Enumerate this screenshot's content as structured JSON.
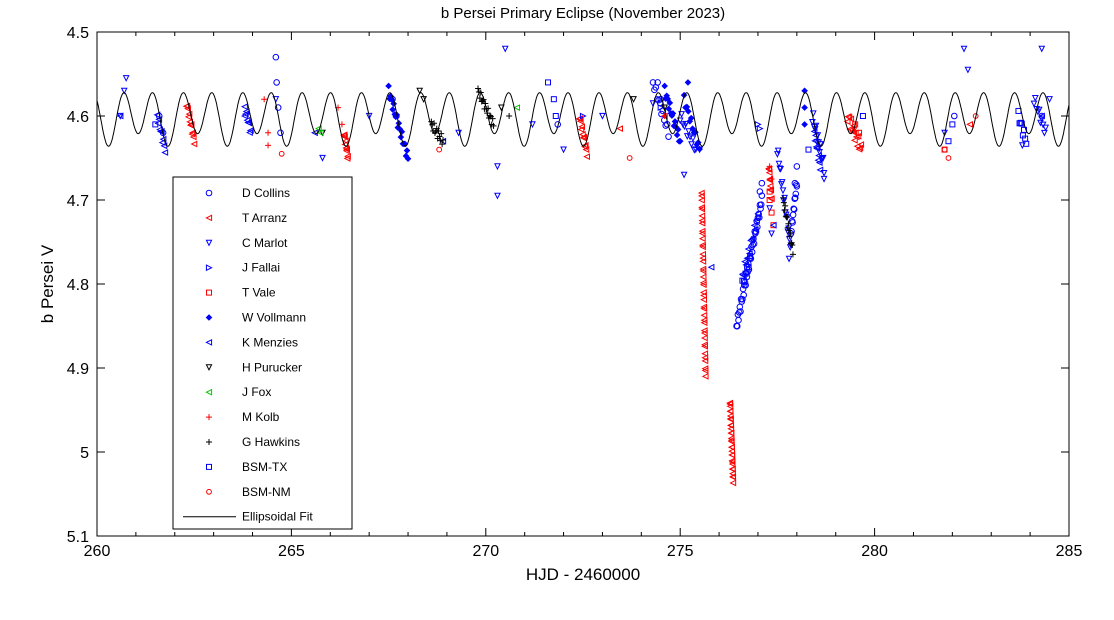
{
  "chart_data": {
    "type": "scatter",
    "title": "b Persei Primary Eclipse (November 2023)",
    "xlabel": "HJD - 2460000",
    "ylabel": "b Persei V",
    "xlim": [
      260,
      285
    ],
    "ylim": [
      4.5,
      5.1
    ],
    "y_inverted": true,
    "xticks": [
      260,
      265,
      270,
      275,
      280,
      285
    ],
    "xtick_labels": [
      "260",
      "265",
      "270",
      "275",
      "280",
      "285"
    ],
    "yticks": [
      4.5,
      4.6,
      4.7,
      4.8,
      4.9,
      5.0,
      5.1
    ],
    "ytick_labels": [
      "4.5",
      "4.6",
      "4.7",
      "4.8",
      "4.9",
      "5",
      "5.1"
    ],
    "legend_position": "bottom-left",
    "grid": false,
    "fit": {
      "name": "Ellipsoidal Fit",
      "color": "#000000",
      "mean": 4.6005,
      "amp_half_period": 0.028,
      "amp_period": 0.0075,
      "period_days": 1.527,
      "epoch": 274.04
    },
    "series": [
      {
        "name": "D Collins",
        "marker": "circle",
        "color": "#0000ff",
        "points": [
          [
            261.6,
            4.6
          ],
          [
            261.7,
            4.62
          ],
          [
            264.6,
            4.53
          ],
          [
            264.62,
            4.56
          ],
          [
            264.66,
            4.59
          ],
          [
            264.72,
            4.62
          ],
          [
            267.6,
            4.58
          ],
          [
            267.7,
            4.6
          ],
          [
            271.85,
            4.61
          ],
          [
            274.42,
            4.56
          ],
          [
            274.5,
            4.58
          ],
          [
            276.46,
            4.85
          ],
          [
            277.05,
            4.69
          ],
          [
            277.1,
            4.68
          ],
          [
            277.95,
            4.68
          ],
          [
            278.0,
            4.66
          ],
          [
            282.05,
            4.6
          ],
          [
            284.3,
            4.6
          ]
        ],
        "runs": [
          [
            276.45,
            277.1,
            4.85,
            4.7,
            40,
            0.006
          ],
          [
            277.85,
            278.0,
            4.74,
            4.68,
            12,
            0.004
          ],
          [
            274.3,
            274.7,
            4.56,
            4.62,
            12,
            0.005
          ]
        ]
      },
      {
        "name": "T Arranz",
        "marker": "tri-left",
        "color": "#ff0000",
        "points": [
          [
            273.45,
            4.615
          ],
          [
            274.6,
            4.6
          ],
          [
            282.45,
            4.61
          ]
        ],
        "runs": [
          [
            262.3,
            262.5,
            4.585,
            4.63,
            12,
            0.004
          ],
          [
            266.35,
            266.45,
            4.62,
            4.65,
            10,
            0.004
          ],
          [
            272.4,
            272.6,
            4.6,
            4.645,
            12,
            0.004
          ],
          [
            275.55,
            275.65,
            4.69,
            4.91,
            40,
            0.002
          ],
          [
            276.28,
            276.36,
            4.94,
            5.035,
            30,
            0.002
          ],
          [
            277.28,
            277.35,
            4.66,
            4.7,
            10,
            0.003
          ],
          [
            279.3,
            279.65,
            4.6,
            4.64,
            16,
            0.008
          ]
        ]
      },
      {
        "name": "C Marlot",
        "marker": "tri-down",
        "color": "#0000ff",
        "points": [
          [
            260.6,
            4.6
          ],
          [
            260.7,
            4.57
          ],
          [
            260.75,
            4.555
          ],
          [
            264.6,
            4.58
          ],
          [
            265.8,
            4.65
          ],
          [
            267.0,
            4.6
          ],
          [
            269.3,
            4.62
          ],
          [
            270.3,
            4.66
          ],
          [
            270.3,
            4.695
          ],
          [
            270.5,
            4.52
          ],
          [
            271.2,
            4.61
          ],
          [
            272.0,
            4.64
          ],
          [
            273.0,
            4.6
          ],
          [
            274.3,
            4.585
          ],
          [
            275.1,
            4.67
          ],
          [
            275.5,
            4.64
          ],
          [
            277.3,
            4.71
          ],
          [
            277.35,
            4.74
          ],
          [
            277.8,
            4.77
          ],
          [
            278.7,
            4.675
          ],
          [
            281.8,
            4.62
          ],
          [
            282.3,
            4.52
          ],
          [
            282.4,
            4.545
          ],
          [
            284.3,
            4.52
          ],
          [
            284.5,
            4.58
          ],
          [
            283.8,
            4.635
          ]
        ],
        "runs": [
          [
            275.0,
            275.4,
            4.6,
            4.64,
            12,
            0.006
          ],
          [
            277.5,
            277.85,
            4.64,
            4.76,
            18,
            0.006
          ],
          [
            278.4,
            278.7,
            4.6,
            4.66,
            14,
            0.008
          ],
          [
            284.1,
            284.4,
            4.58,
            4.62,
            10,
            0.006
          ]
        ]
      },
      {
        "name": "J Fallai",
        "marker": "tri-right",
        "color": "#0000ff",
        "points": [
          [
            277.0,
            4.61
          ],
          [
            277.05,
            4.615
          ],
          [
            274.5,
            4.59
          ],
          [
            272.5,
            4.6
          ]
        ],
        "runs": []
      },
      {
        "name": "T Vale",
        "marker": "square",
        "color": "#ff0000",
        "points": [
          [
            277.3,
            4.7
          ],
          [
            277.35,
            4.715
          ],
          [
            277.4,
            4.73
          ],
          [
            277.3,
            4.69
          ],
          [
            279.5,
            4.61
          ],
          [
            279.6,
            4.62
          ],
          [
            281.8,
            4.64
          ]
        ],
        "runs": []
      },
      {
        "name": "W Vollmann",
        "marker": "diamond",
        "color": "#0000ff",
        "points": [
          [
            275.2,
            4.56
          ],
          [
            278.2,
            4.57
          ],
          [
            278.2,
            4.59
          ],
          [
            278.2,
            4.61
          ]
        ],
        "runs": [
          [
            267.5,
            268.0,
            4.57,
            4.65,
            20,
            0.006
          ],
          [
            274.6,
            275.0,
            4.57,
            4.63,
            16,
            0.006
          ],
          [
            275.1,
            275.5,
            4.58,
            4.64,
            12,
            0.005
          ]
        ]
      },
      {
        "name": "K Menzies",
        "marker": "tri-left",
        "color": "#0000ff",
        "points": [
          [
            260.6,
            4.6
          ],
          [
            263.8,
            4.6
          ],
          [
            265.6,
            4.62
          ],
          [
            268.9,
            4.63
          ],
          [
            275.8,
            4.78
          ],
          [
            277.4,
            4.73
          ],
          [
            284.3,
            4.6
          ]
        ],
        "runs": [
          [
            276.6,
            277.0,
            4.79,
            4.72,
            14,
            0.006
          ],
          [
            278.45,
            278.6,
            4.62,
            4.66,
            10,
            0.006
          ],
          [
            261.55,
            261.75,
            4.6,
            4.64,
            10,
            0.005
          ],
          [
            263.8,
            263.95,
            4.59,
            4.62,
            8,
            0.004
          ]
        ]
      },
      {
        "name": "H Purucker",
        "marker": "tri-down",
        "color": "#000000",
        "points": [
          [
            268.3,
            4.57
          ],
          [
            268.4,
            4.58
          ],
          [
            270.4,
            4.59
          ],
          [
            273.8,
            4.58
          ],
          [
            274.6,
            4.59
          ],
          [
            265.8,
            4.62
          ]
        ],
        "runs": []
      },
      {
        "name": "J Fox",
        "marker": "tri-left",
        "color": "#00cc00",
        "points": [
          [
            265.7,
            4.615
          ],
          [
            265.75,
            4.62
          ],
          [
            270.8,
            4.59
          ]
        ],
        "runs": []
      },
      {
        "name": "M Kolb",
        "marker": "plus",
        "color": "#ff0000",
        "points": [
          [
            264.3,
            4.58
          ],
          [
            264.4,
            4.62
          ],
          [
            264.4,
            4.635
          ],
          [
            266.2,
            4.59
          ],
          [
            266.3,
            4.61
          ],
          [
            277.3,
            4.66
          ],
          [
            277.35,
            4.675
          ],
          [
            274.6,
            4.6
          ]
        ],
        "runs": []
      },
      {
        "name": "G Hawkins",
        "marker": "plus",
        "color": "#000000",
        "points": [
          [
            270.6,
            4.6
          ]
        ],
        "runs": [
          [
            268.6,
            268.9,
            4.61,
            4.63,
            14,
            0.006
          ],
          [
            269.8,
            270.2,
            4.57,
            4.61,
            18,
            0.005
          ],
          [
            277.65,
            277.9,
            4.7,
            4.76,
            16,
            0.005
          ]
        ]
      },
      {
        "name": "BSM-TX",
        "marker": "square",
        "color": "#0000ff",
        "points": [
          [
            261.5,
            4.61
          ],
          [
            271.6,
            4.56
          ],
          [
            271.75,
            4.58
          ],
          [
            271.8,
            4.6
          ],
          [
            278.3,
            4.64
          ],
          [
            279.7,
            4.6
          ],
          [
            282.0,
            4.61
          ],
          [
            281.9,
            4.63
          ]
        ],
        "runs": [
          [
            276.6,
            276.8,
            4.8,
            4.77,
            6,
            0.004
          ],
          [
            283.7,
            283.9,
            4.6,
            4.63,
            8,
            0.006
          ]
        ]
      },
      {
        "name": "BSM-NM",
        "marker": "circle-small",
        "color": "#ff0000",
        "points": [
          [
            264.75,
            4.645
          ],
          [
            268.8,
            4.64
          ],
          [
            273.7,
            4.65
          ],
          [
            281.8,
            4.64
          ],
          [
            281.9,
            4.65
          ],
          [
            282.6,
            4.6
          ]
        ],
        "runs": []
      }
    ]
  }
}
